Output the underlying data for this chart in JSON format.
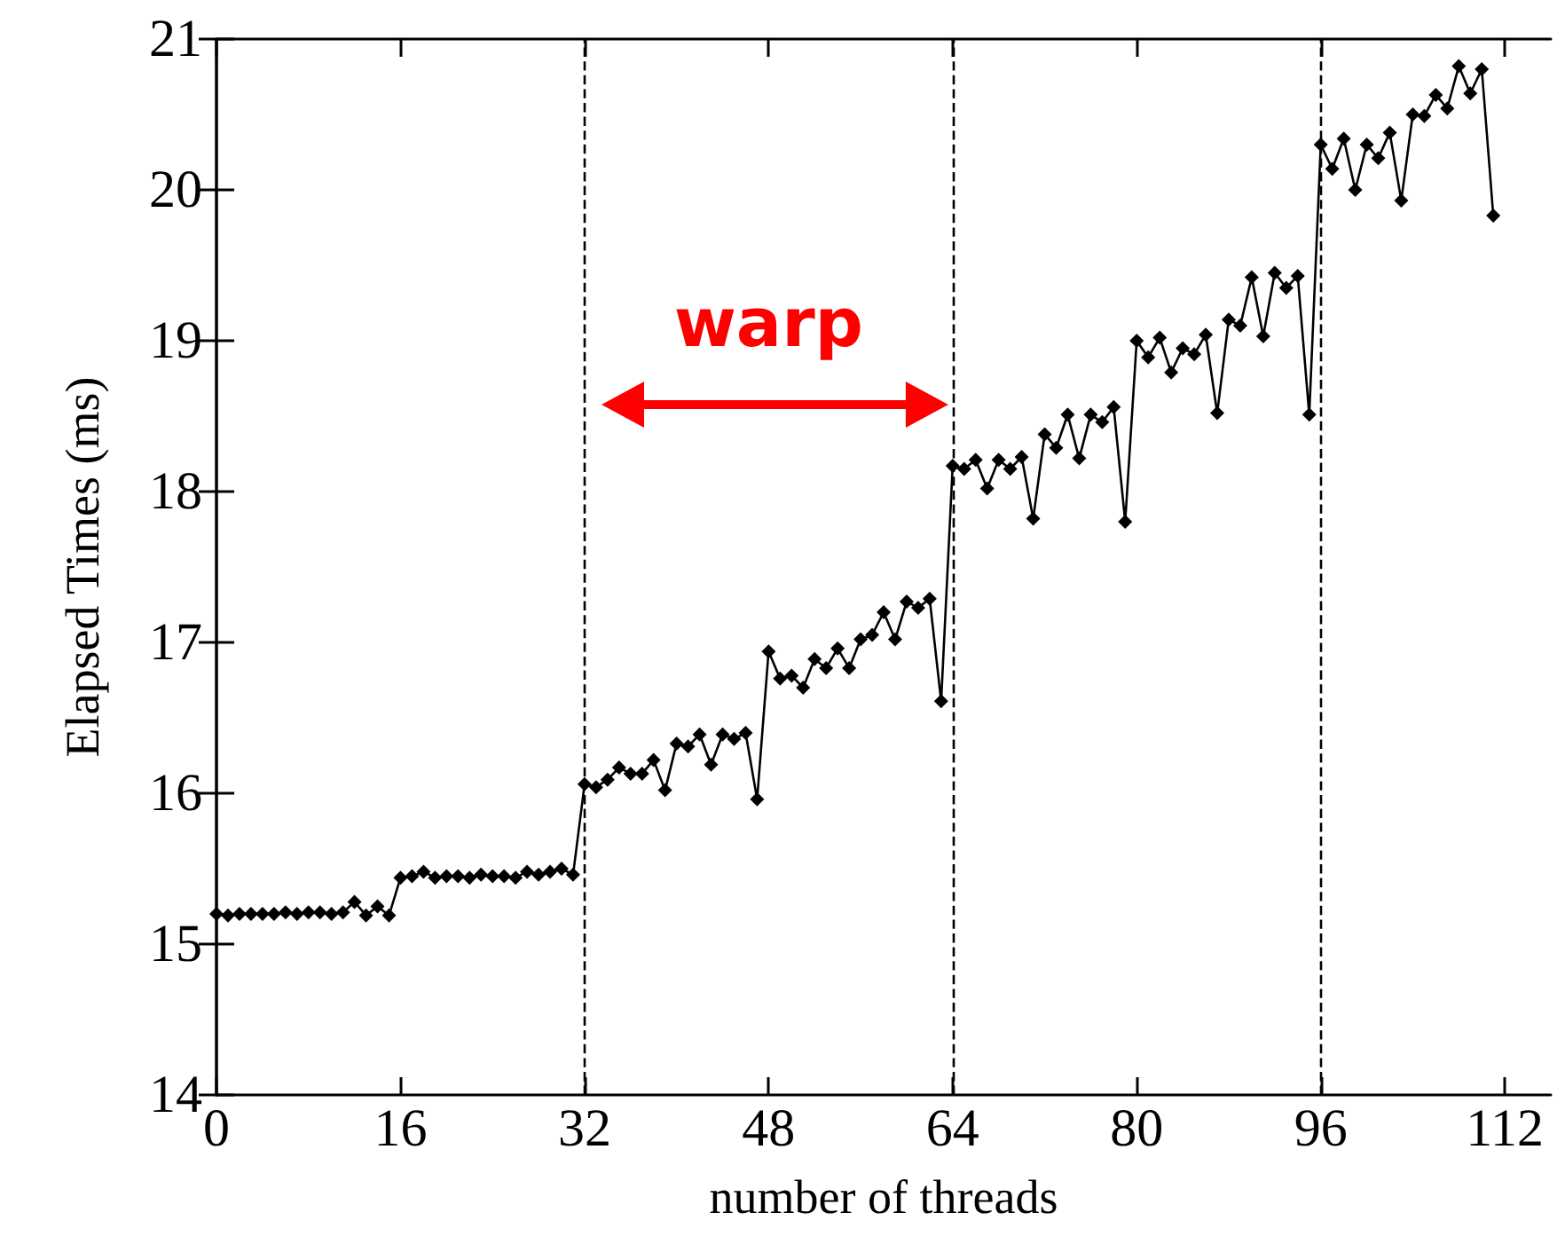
{
  "chart_data": {
    "type": "line",
    "xlabel": "number of threads",
    "ylabel": "Elapsed Times (ms)",
    "x": [
      0,
      1,
      2,
      3,
      4,
      5,
      6,
      7,
      8,
      9,
      10,
      11,
      12,
      13,
      14,
      15,
      16,
      17,
      18,
      19,
      20,
      21,
      22,
      23,
      24,
      25,
      26,
      27,
      28,
      29,
      30,
      31,
      32,
      33,
      34,
      35,
      36,
      37,
      38,
      39,
      40,
      41,
      42,
      43,
      44,
      45,
      46,
      47,
      48,
      49,
      50,
      51,
      52,
      53,
      54,
      55,
      56,
      57,
      58,
      59,
      60,
      61,
      62,
      63,
      64,
      65,
      66,
      67,
      68,
      69,
      70,
      71,
      72,
      73,
      74,
      75,
      76,
      77,
      78,
      79,
      80,
      81,
      82,
      83,
      84,
      85,
      86,
      87,
      88,
      89,
      90,
      91,
      92,
      93,
      94,
      95,
      96,
      97,
      98,
      99,
      100,
      101,
      102,
      103,
      104,
      105,
      106,
      107,
      108,
      109,
      110,
      111
    ],
    "series": [
      {
        "color": "#000000",
        "values": [
          15.2,
          15.19,
          15.2,
          15.2,
          15.2,
          15.2,
          15.21,
          15.2,
          15.21,
          15.21,
          15.2,
          15.21,
          15.28,
          15.19,
          15.25,
          15.19,
          15.44,
          15.45,
          15.48,
          15.44,
          15.45,
          15.45,
          15.44,
          15.46,
          15.45,
          15.45,
          15.44,
          15.48,
          15.46,
          15.48,
          15.5,
          15.46,
          16.06,
          16.04,
          16.09,
          16.17,
          16.13,
          16.13,
          16.22,
          16.02,
          16.33,
          16.31,
          16.39,
          16.19,
          16.39,
          16.36,
          16.4,
          15.96,
          16.94,
          16.76,
          16.78,
          16.7,
          16.89,
          16.83,
          16.96,
          16.83,
          17.02,
          17.05,
          17.2,
          17.02,
          17.27,
          17.23,
          17.29,
          16.61,
          18.17,
          18.15,
          18.21,
          18.02,
          18.21,
          18.15,
          18.23,
          17.82,
          18.38,
          18.29,
          18.51,
          18.22,
          18.51,
          18.46,
          18.56,
          17.8,
          19.0,
          18.89,
          19.02,
          18.79,
          18.95,
          18.91,
          19.04,
          18.52,
          19.14,
          19.1,
          19.42,
          19.03,
          19.45,
          19.35,
          19.43,
          18.51,
          20.3,
          20.14,
          20.34,
          20.0,
          20.3,
          20.21,
          20.38,
          19.93,
          20.5,
          20.49,
          20.63,
          20.54,
          20.82,
          20.64,
          20.8,
          19.83
        ]
      }
    ],
    "xlim": [
      0,
      116
    ],
    "xticks": [
      0,
      16,
      32,
      48,
      64,
      80,
      96,
      112
    ],
    "ylim": [
      14,
      21
    ],
    "yticks": [
      14,
      15,
      16,
      17,
      18,
      19,
      20,
      21
    ],
    "marker": "diamond",
    "line_style": "solid",
    "ref_lines": [
      {
        "axis": "x",
        "value": 32,
        "color": "#000000",
        "line_style": "dashed"
      },
      {
        "axis": "x",
        "value": 64,
        "color": "#000000",
        "line_style": "dashed"
      },
      {
        "axis": "x",
        "value": 96,
        "color": "#000000",
        "line_style": "dashed"
      }
    ],
    "annotations": [
      "warp"
    ]
  }
}
